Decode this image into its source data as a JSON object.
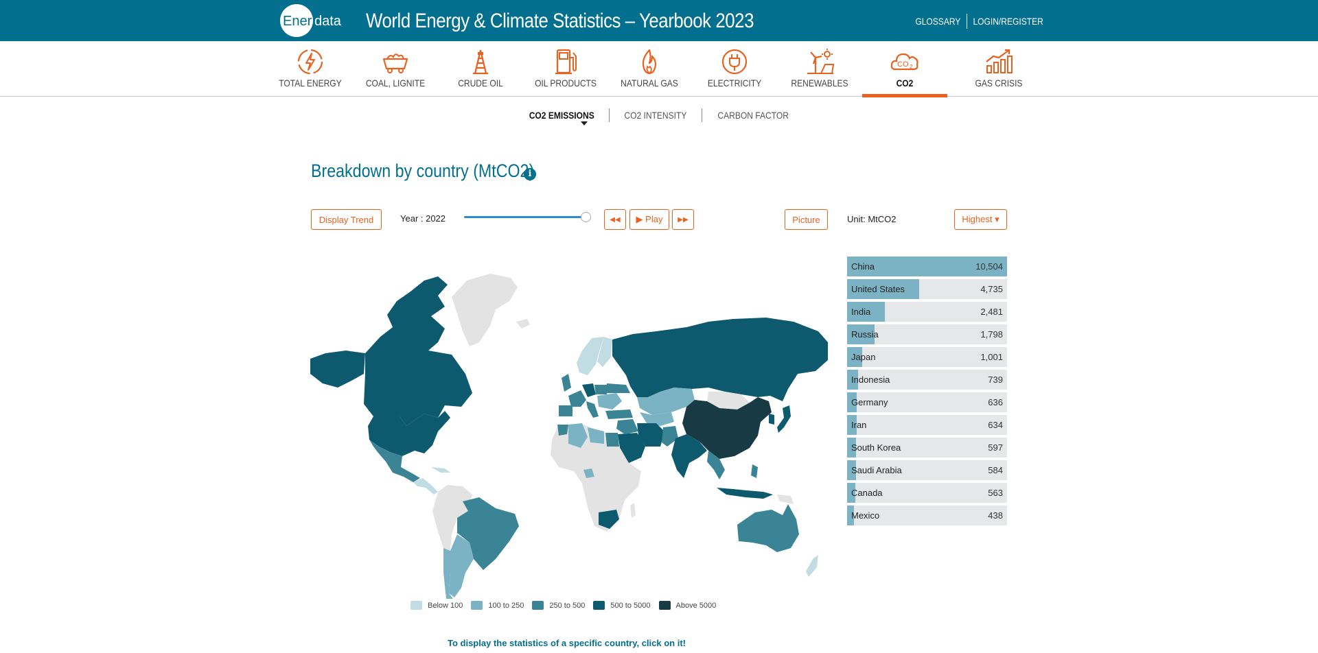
{
  "brand": {
    "logo_ener": "Ener",
    "logo_data": "data"
  },
  "header": {
    "title": "World Energy & Climate Statistics – Yearbook 2023",
    "glossary": "GLOSSARY",
    "login": "LOGIN/REGISTER"
  },
  "categories": [
    {
      "label": "TOTAL ENERGY",
      "icon": "lightning-circle-icon"
    },
    {
      "label": "COAL, LIGNITE",
      "icon": "coal-cart-icon"
    },
    {
      "label": "CRUDE OIL",
      "icon": "oil-derrick-icon"
    },
    {
      "label": "OIL PRODUCTS",
      "icon": "fuel-pump-icon"
    },
    {
      "label": "NATURAL GAS",
      "icon": "flame-icon"
    },
    {
      "label": "ELECTRICITY",
      "icon": "plug-icon"
    },
    {
      "label": "RENEWABLES",
      "icon": "wind-solar-icon"
    },
    {
      "label": "CO2",
      "icon": "co2-cloud-icon",
      "active": true
    },
    {
      "label": "GAS CRISIS",
      "icon": "rising-chart-icon"
    }
  ],
  "subnav": {
    "emissions": "CO2 EMISSIONS",
    "intensity": "CO2 INTENSITY",
    "factor": "CARBON FACTOR"
  },
  "main": {
    "title": "Breakdown by country (MtCO2)",
    "info": "i",
    "display_trend": "Display Trend",
    "year_label": "Year : 2022",
    "year_position": 1.0,
    "rewind": "◀◀",
    "play": "▶ Play",
    "forward": "▶▶",
    "picture": "Picture",
    "unit": "Unit: MtCO2",
    "sort": "Highest ▾",
    "hint": "To display the statistics of a specific country, click on it!"
  },
  "colors": {
    "brand_blue": "#026f8e",
    "accent_orange": "#e8611f",
    "no_data": "#e3e3e3",
    "below_100": "#c2dce3",
    "range_100_250": "#7bb3c5",
    "range_250_500": "#3a8496",
    "range_500_5000": "#0d5a6e",
    "above_5000": "#173a45"
  },
  "legend": [
    {
      "label": "Below 100",
      "color": "#c2dce3"
    },
    {
      "label": "100 to 250",
      "color": "#7bb3c5"
    },
    {
      "label": "250 to 500",
      "color": "#3a8496"
    },
    {
      "label": "500 to 5000",
      "color": "#0d5a6e"
    },
    {
      "label": "Above 5000",
      "color": "#173a45"
    }
  ],
  "ranking": [
    {
      "country": "China",
      "value": "10,504",
      "num": 10504
    },
    {
      "country": "United States",
      "value": "4,735",
      "num": 4735
    },
    {
      "country": "India",
      "value": "2,481",
      "num": 2481
    },
    {
      "country": "Russia",
      "value": "1,798",
      "num": 1798
    },
    {
      "country": "Japan",
      "value": "1,001",
      "num": 1001
    },
    {
      "country": "Indonesia",
      "value": "739",
      "num": 739
    },
    {
      "country": "Germany",
      "value": "636",
      "num": 636
    },
    {
      "country": "Iran",
      "value": "634",
      "num": 634
    },
    {
      "country": "South Korea",
      "value": "597",
      "num": 597
    },
    {
      "country": "Saudi Arabia",
      "value": "584",
      "num": 584
    },
    {
      "country": "Canada",
      "value": "563",
      "num": 563
    },
    {
      "country": "Mexico",
      "value": "438",
      "num": 438
    }
  ]
}
